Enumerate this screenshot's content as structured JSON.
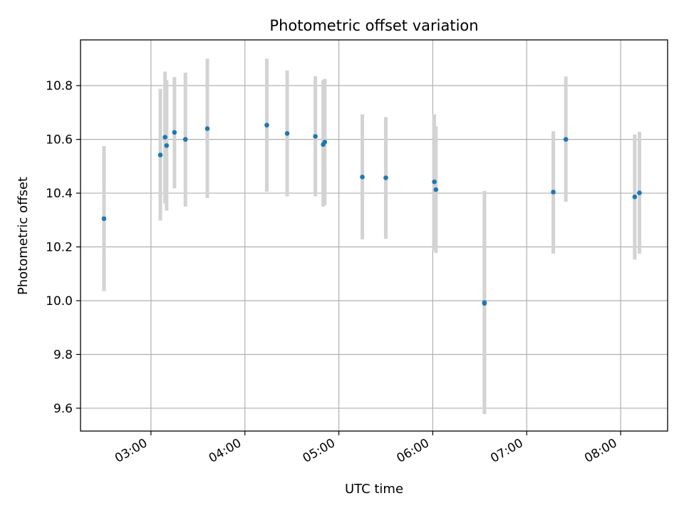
{
  "chart_data": {
    "type": "scatter",
    "title": "Photometric offset variation",
    "xlabel": "UTC time",
    "ylabel": "Photometric offset",
    "x_ticks": [
      "03:00",
      "04:00",
      "05:00",
      "06:00",
      "07:00",
      "08:00"
    ],
    "y_ticks": [
      "9.6",
      "9.8",
      "10.0",
      "10.2",
      "10.4",
      "10.6",
      "10.8"
    ],
    "xlim": [
      "02:15",
      "08:30"
    ],
    "ylim": [
      9.515,
      10.97
    ],
    "grid": true,
    "colors": {
      "points": "#1f77b4",
      "error_bars": "#d3d3d3",
      "grid": "#b0b0b0"
    },
    "points": [
      {
        "x": "02:30",
        "y": 10.305,
        "yerr_low": 10.035,
        "yerr_high": 10.575
      },
      {
        "x": "03:06",
        "y": 10.542,
        "yerr_low": 10.298,
        "yerr_high": 10.788
      },
      {
        "x": "03:09",
        "y": 10.608,
        "yerr_low": 10.362,
        "yerr_high": 10.852
      },
      {
        "x": "03:10",
        "y": 10.577,
        "yerr_low": 10.335,
        "yerr_high": 10.82
      },
      {
        "x": "03:15",
        "y": 10.626,
        "yerr_low": 10.418,
        "yerr_high": 10.832
      },
      {
        "x": "03:22",
        "y": 10.6,
        "yerr_low": 10.35,
        "yerr_high": 10.848
      },
      {
        "x": "03:36",
        "y": 10.64,
        "yerr_low": 10.382,
        "yerr_high": 10.9
      },
      {
        "x": "04:14",
        "y": 10.653,
        "yerr_low": 10.405,
        "yerr_high": 10.9
      },
      {
        "x": "04:27",
        "y": 10.622,
        "yerr_low": 10.388,
        "yerr_high": 10.856
      },
      {
        "x": "04:45",
        "y": 10.611,
        "yerr_low": 10.388,
        "yerr_high": 10.835
      },
      {
        "x": "04:50",
        "y": 10.581,
        "yerr_low": 10.35,
        "yerr_high": 10.82
      },
      {
        "x": "04:51",
        "y": 10.59,
        "yerr_low": 10.355,
        "yerr_high": 10.825
      },
      {
        "x": "05:15",
        "y": 10.46,
        "yerr_low": 10.228,
        "yerr_high": 10.693
      },
      {
        "x": "05:30",
        "y": 10.457,
        "yerr_low": 10.23,
        "yerr_high": 10.683
      },
      {
        "x": "06:01",
        "y": 10.442,
        "yerr_low": 10.19,
        "yerr_high": 10.693
      },
      {
        "x": "06:02",
        "y": 10.413,
        "yerr_low": 10.178,
        "yerr_high": 10.648
      },
      {
        "x": "06:33",
        "y": 9.993,
        "yerr_low": 9.578,
        "yerr_high": 10.408
      },
      {
        "x": "06:33",
        "y": 9.99,
        "yerr_low": 9.62,
        "yerr_high": 10.36
      },
      {
        "x": "07:17",
        "y": 10.404,
        "yerr_low": 10.175,
        "yerr_high": 10.63
      },
      {
        "x": "07:25",
        "y": 10.6,
        "yerr_low": 10.368,
        "yerr_high": 10.834
      },
      {
        "x": "08:09",
        "y": 10.386,
        "yerr_low": 10.153,
        "yerr_high": 10.618
      },
      {
        "x": "08:12",
        "y": 10.401,
        "yerr_low": 10.175,
        "yerr_high": 10.628
      }
    ]
  }
}
